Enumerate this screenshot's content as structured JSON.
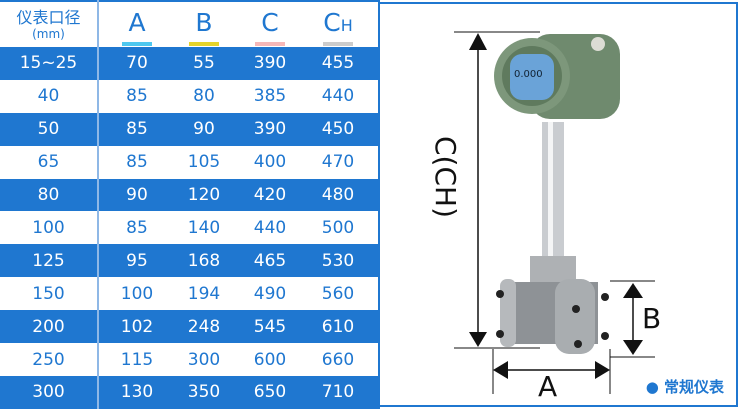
{
  "table": {
    "header": {
      "size_label": "仪表口径",
      "unit": "(mm)",
      "cols": [
        {
          "label": "A",
          "sub": "",
          "color": "#4fc8ef"
        },
        {
          "label": "B",
          "sub": "",
          "color": "#e6d42a"
        },
        {
          "label": "C",
          "sub": "",
          "color": "#f6b8b8"
        },
        {
          "label": "C",
          "sub": "H",
          "color": "#cccccc"
        }
      ]
    },
    "rows": [
      [
        "15~25",
        "70",
        "55",
        "390",
        "455"
      ],
      [
        "40",
        "85",
        "80",
        "385",
        "440"
      ],
      [
        "50",
        "85",
        "90",
        "390",
        "450"
      ],
      [
        "65",
        "85",
        "105",
        "400",
        "470"
      ],
      [
        "80",
        "90",
        "120",
        "420",
        "480"
      ],
      [
        "100",
        "85",
        "140",
        "440",
        "500"
      ],
      [
        "125",
        "95",
        "168",
        "465",
        "530"
      ],
      [
        "150",
        "100",
        "194",
        "490",
        "560"
      ],
      [
        "200",
        "102",
        "248",
        "545",
        "610"
      ],
      [
        "250",
        "115",
        "300",
        "600",
        "660"
      ],
      [
        "300",
        "130",
        "350",
        "650",
        "710"
      ]
    ]
  },
  "diagram": {
    "height_label": "C(CH)",
    "width_label": "A",
    "flange_label": "B",
    "caption": "● 常规仪表",
    "display_text": "0.000"
  },
  "colors": {
    "accent": "#1f77d0"
  }
}
